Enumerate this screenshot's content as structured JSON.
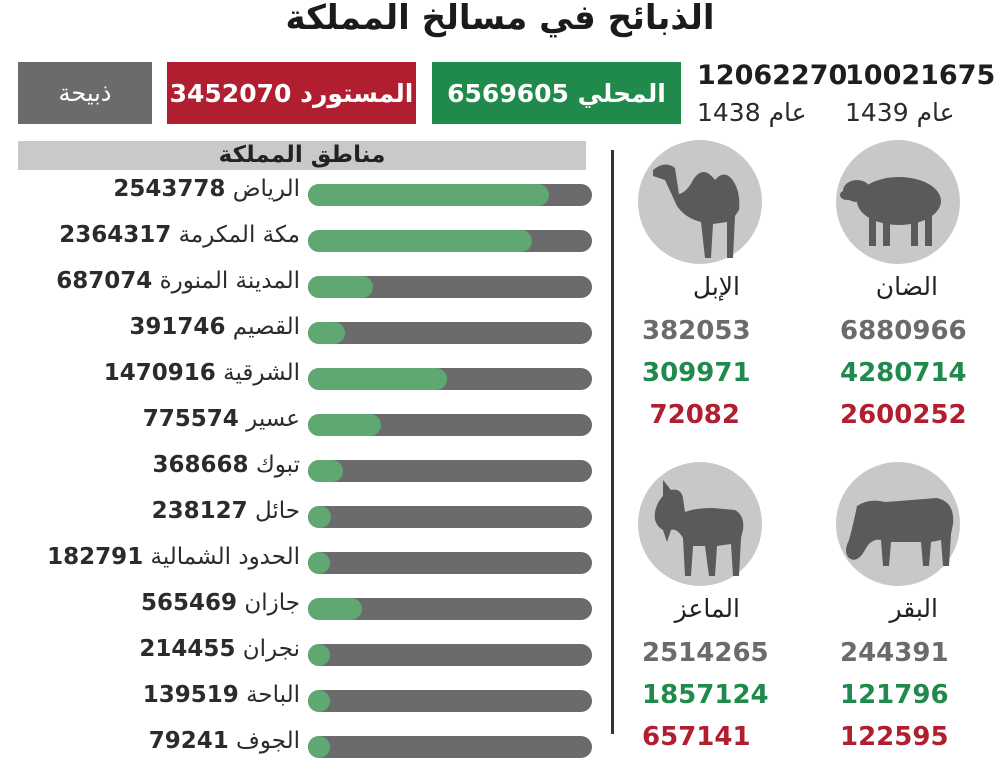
{
  "title": "الذبائح في مسالخ المملكة",
  "summary": {
    "slaughter_label": "ذبيحة",
    "imported_value": "3452070",
    "imported_label": "المستورد",
    "local_value": "6569605",
    "local_label": "المحلي",
    "year_1438_total": "12062270",
    "year_1438_label": "عام 1438",
    "year_1439_total": "10021675",
    "year_1439_label": "عام 1439"
  },
  "colors": {
    "local": "#1f8a4c",
    "imported": "#b01e2f",
    "neutral": "#6b6b6d",
    "bar_fill": "#5fa872",
    "bar_track": "#6b6b6d",
    "circle": "#c8c8ca",
    "silhouette": "#5a5a5c"
  },
  "chart_data": {
    "type": "bar",
    "title": "مناطق المملكة",
    "orientation": "horizontal",
    "xlim": [
      0,
      3000000
    ],
    "categories": [
      "الرياض",
      "مكة المكرمة",
      "المدينة المنورة",
      "القصيم",
      "الشرقية",
      "عسير",
      "تبوك",
      "حائل",
      "الحدود الشمالية",
      "جازان",
      "نجران",
      "الباحة",
      "الجوف"
    ],
    "values": [
      2543778,
      2364317,
      687074,
      391746,
      1470916,
      775574,
      368668,
      238127,
      182791,
      565469,
      214455,
      139519,
      79241
    ]
  },
  "animals": [
    {
      "name": "الضان",
      "total": "6880966",
      "local": "4280714",
      "imported": "2600252",
      "icon": "sheep-icon"
    },
    {
      "name": "الإبل",
      "total": "382053",
      "local": "309971",
      "imported": "72082",
      "icon": "camel-icon"
    },
    {
      "name": "البقر",
      "total": "244391",
      "local": "121796",
      "imported": "122595",
      "icon": "cow-icon"
    },
    {
      "name": "الماعز",
      "total": "2514265",
      "local": "1857124",
      "imported": "657141",
      "icon": "goat-icon"
    }
  ]
}
